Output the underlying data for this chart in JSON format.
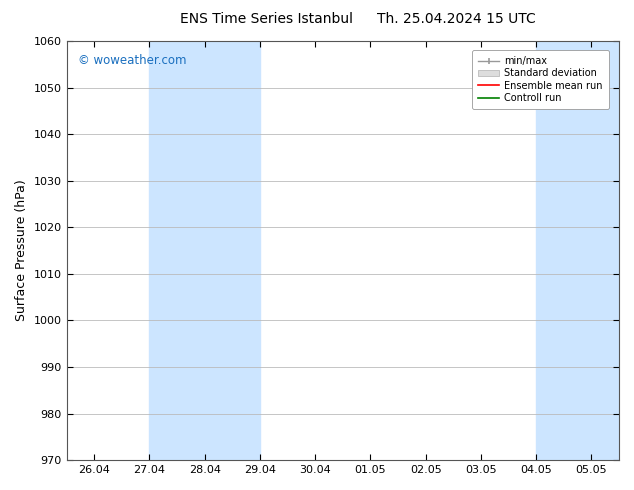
{
  "title_left": "ENS Time Series Istanbul",
  "title_right": "Th. 25.04.2024 15 UTC",
  "ylabel": "Surface Pressure (hPa)",
  "ylim": [
    970,
    1060
  ],
  "yticks": [
    970,
    980,
    990,
    1000,
    1010,
    1020,
    1030,
    1040,
    1050,
    1060
  ],
  "x_labels": [
    "26.04",
    "27.04",
    "28.04",
    "29.04",
    "30.04",
    "01.05",
    "02.05",
    "03.05",
    "04.05",
    "05.05"
  ],
  "x_values": [
    0,
    1,
    2,
    3,
    4,
    5,
    6,
    7,
    8,
    9
  ],
  "x_min": -0.5,
  "x_max": 9.5,
  "shaded_bands": [
    {
      "x_start": 1.0,
      "x_end": 3.0,
      "color": "#cce5ff"
    },
    {
      "x_start": 8.0,
      "x_end": 9.5,
      "color": "#cce5ff"
    },
    {
      "x_start": 9.3,
      "x_end": 9.5,
      "color": "#cce5ff"
    }
  ],
  "watermark": "© woweather.com",
  "watermark_color": "#1a6fbf",
  "background_color": "#ffffff",
  "plot_bg_color": "#ffffff",
  "legend_items": [
    {
      "label": "min/max",
      "color": "#999999",
      "style": "errorbar"
    },
    {
      "label": "Standard deviation",
      "color": "#cccccc",
      "style": "band"
    },
    {
      "label": "Ensemble mean run",
      "color": "#ff0000",
      "style": "line"
    },
    {
      "label": "Controll run",
      "color": "#008000",
      "style": "line"
    }
  ],
  "grid_color": "#bbbbbb",
  "title_fontsize": 10,
  "tick_fontsize": 8,
  "ylabel_fontsize": 9,
  "font_family": "DejaVu Sans"
}
